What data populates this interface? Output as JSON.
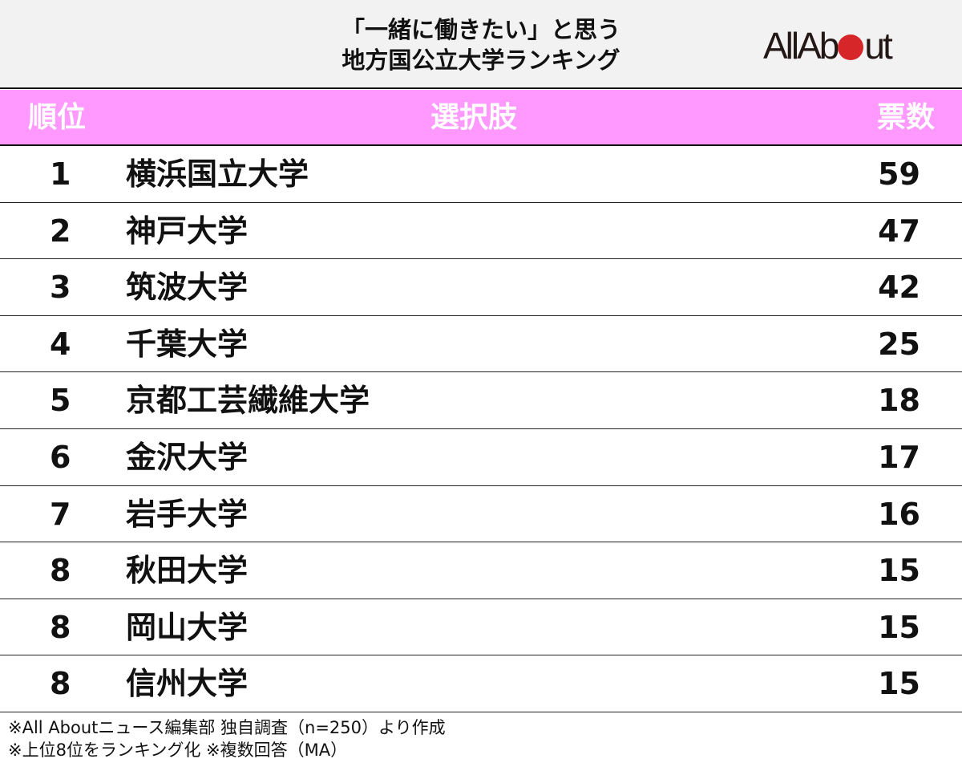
{
  "header": {
    "title_line1": "「一緒に働きたい」と思う",
    "title_line2": "地方国公立大学ランキング",
    "logo": "All About"
  },
  "colors": {
    "header_bg": "#ff99ff",
    "logo_dot": "#d7262a",
    "top_bg": "#f2f2f2"
  },
  "chart_data": {
    "type": "table",
    "columns": [
      "順位",
      "選択肢",
      "票数"
    ],
    "rows": [
      {
        "rank": "1",
        "name": "横浜国立大学",
        "votes": "59"
      },
      {
        "rank": "2",
        "name": "神戸大学",
        "votes": "47"
      },
      {
        "rank": "3",
        "name": "筑波大学",
        "votes": "42"
      },
      {
        "rank": "4",
        "name": "千葉大学",
        "votes": "25"
      },
      {
        "rank": "5",
        "name": "京都工芸繊維大学",
        "votes": "18"
      },
      {
        "rank": "6",
        "name": "金沢大学",
        "votes": "17"
      },
      {
        "rank": "7",
        "name": "岩手大学",
        "votes": "16"
      },
      {
        "rank": "8",
        "name": "秋田大学",
        "votes": "15"
      },
      {
        "rank": "8",
        "name": "岡山大学",
        "votes": "15"
      },
      {
        "rank": "8",
        "name": "信州大学",
        "votes": "15"
      }
    ]
  },
  "footer": {
    "note1": "※All Aboutニュース編集部 独自調査（n=250）より作成",
    "note2": "※上位8位をランキング化 ※複数回答（MA）"
  }
}
